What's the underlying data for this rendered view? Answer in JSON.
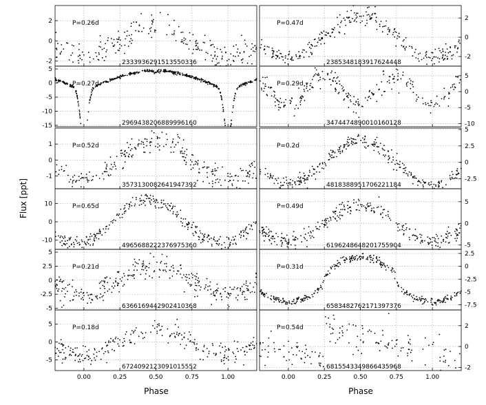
{
  "figure": {
    "xlabel": "Phase",
    "ylabel": "Flux [ppt]",
    "xticks": [
      "0.00",
      "0.25",
      "0.50",
      "0.75",
      "1.00"
    ],
    "grid": "x-dotted"
  },
  "chart_data": [
    {
      "type": "scatter",
      "column": "left",
      "period": "P=0.26d",
      "id": "2333936291513550336",
      "xlim": [
        -0.2,
        1.2
      ],
      "yticks": [
        -2,
        0,
        2
      ],
      "ylim": [
        -2.5,
        3.5
      ],
      "shape": "sine",
      "amp": 1.6,
      "phi0": 0.5,
      "noise": 0.65,
      "n": 230
    },
    {
      "type": "scatter",
      "column": "left",
      "period": "P=0.27d",
      "id": "2969438206889996160",
      "xlim": [
        -0.2,
        1.2
      ],
      "yticks": [
        -15,
        -10,
        -5,
        0,
        5
      ],
      "ylim": [
        -15.5,
        6
      ],
      "shape": "eclipse",
      "amp": 5,
      "phi0": 0.5,
      "noise": 0.25,
      "n": 500
    },
    {
      "type": "scatter",
      "column": "left",
      "period": "P=0.52d",
      "id": "3573130082641947392",
      "xlim": [
        -0.2,
        1.2
      ],
      "yticks": [
        -1,
        0,
        1
      ],
      "ylim": [
        -1.8,
        2
      ],
      "shape": "sine",
      "amp": 1.2,
      "phi0": 0.5,
      "noise": 0.35,
      "n": 260
    },
    {
      "type": "scatter",
      "column": "left",
      "period": "P=0.65d",
      "id": "4965688222376975360",
      "xlim": [
        -0.2,
        1.2
      ],
      "yticks": [
        -10,
        0,
        10
      ],
      "ylim": [
        -15,
        18
      ],
      "shape": "sine",
      "amp": 12,
      "phi0": 0.45,
      "noise": 1.8,
      "n": 300
    },
    {
      "type": "scatter",
      "column": "left",
      "period": "P=0.21d",
      "id": "6366169442902410368",
      "xlim": [
        -0.2,
        1.2
      ],
      "yticks": [
        -5.0,
        -2.5,
        0.0,
        2.5,
        5.0
      ],
      "ylim": [
        -5.3,
        5.5
      ],
      "shape": "sine",
      "amp": 2.6,
      "phi0": 0.5,
      "noise": 1.0,
      "n": 300
    },
    {
      "type": "scatter",
      "column": "left",
      "period": "P=0.18d",
      "id": "6724092123091015552",
      "xlim": [
        -0.2,
        1.2
      ],
      "yticks": [
        -5,
        0,
        5
      ],
      "ylim": [
        -8,
        9
      ],
      "shape": "sine",
      "amp": 3.8,
      "phi0": 0.5,
      "noise": 1.5,
      "n": 240
    },
    {
      "type": "scatter",
      "column": "right",
      "period": "P=0.47d",
      "id": "2385348183917624448",
      "xlim": [
        -0.2,
        1.2
      ],
      "yticks": [
        -2,
        0,
        2
      ],
      "ylim": [
        -3,
        3.3
      ],
      "shape": "sine",
      "amp": 2.2,
      "phi0": 0.5,
      "noise": 0.45,
      "n": 280
    },
    {
      "type": "scatter",
      "column": "right",
      "period": "P=0.29d",
      "id": "3474474890010160128",
      "xlim": [
        -0.2,
        1.2
      ],
      "yticks": [
        -10,
        -5,
        0,
        5
      ],
      "ylim": [
        -11,
        8
      ],
      "shape": "double",
      "amp": 6,
      "phi0": 0.3,
      "noise": 1.6,
      "n": 260
    },
    {
      "type": "scatter",
      "column": "right",
      "period": "P=0.2d",
      "id": "4818388951706221184",
      "xlim": [
        -0.2,
        1.2
      ],
      "yticks": [
        -2.5,
        0.0,
        2.5,
        5.0
      ],
      "ylim": [
        -4,
        5.2
      ],
      "shape": "sine",
      "amp": 3.3,
      "phi0": 0.5,
      "noise": 0.5,
      "n": 300
    },
    {
      "type": "scatter",
      "column": "right",
      "period": "P=0.49d",
      "id": "6196248648201755904",
      "xlim": [
        -0.2,
        1.2
      ],
      "yticks": [
        -5,
        0,
        5
      ],
      "ylim": [
        -6,
        8
      ],
      "shape": "sine",
      "amp": 4.2,
      "phi0": 0.5,
      "noise": 0.9,
      "n": 300
    },
    {
      "type": "scatter",
      "column": "right",
      "period": "P=0.31d",
      "id": "6583482762171397376",
      "xlim": [
        -0.2,
        1.2
      ],
      "yticks": [
        -7.5,
        -5.0,
        -2.5,
        0.0,
        2.5
      ],
      "ylim": [
        -8.5,
        3.3
      ],
      "shape": "wide",
      "amp": 4.3,
      "phi0": 0.5,
      "noise": 0.35,
      "n": 330
    },
    {
      "type": "scatter",
      "column": "right",
      "period": "P=0.54d",
      "id": "6815543349866435968",
      "xlim": [
        -0.2,
        1.2
      ],
      "yticks": [
        -2,
        0,
        2
      ],
      "ylim": [
        -2.3,
        3.5
      ],
      "shape": "sawtooth",
      "amp": 1.6,
      "phi0": 0.25,
      "noise": 0.75,
      "n": 160
    }
  ]
}
